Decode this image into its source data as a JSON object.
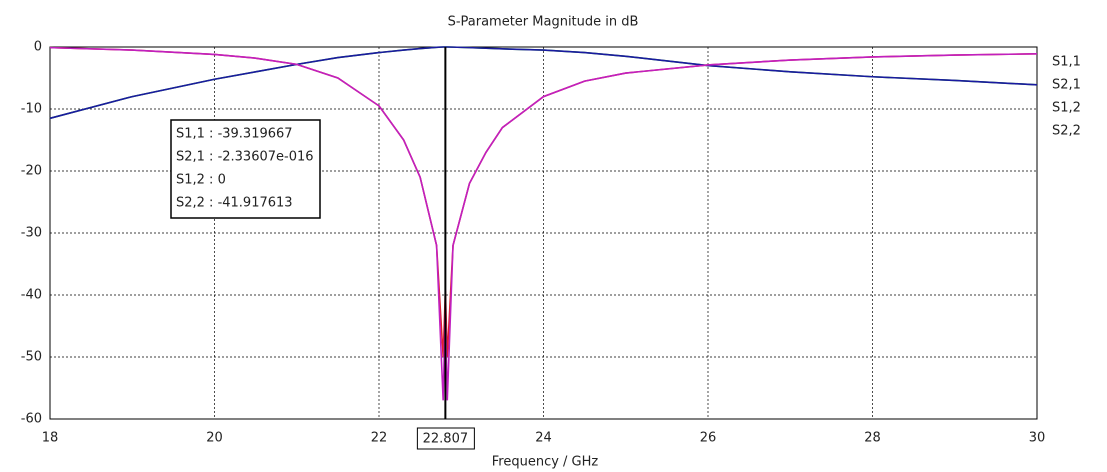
{
  "chart_data": {
    "type": "line",
    "title": "S-Parameter Magnitude in dB",
    "x_label": "Frequency / GHz",
    "x": [
      18,
      19,
      20,
      20.5,
      21,
      21.5,
      22,
      22.3,
      22.5,
      22.7,
      22.78,
      22.807,
      22.83,
      22.9,
      23.1,
      23.3,
      23.5,
      24,
      24.5,
      25,
      26,
      27,
      28,
      29,
      30
    ],
    "series": [
      {
        "name": "S1,1",
        "color": "#e0202a",
        "values": [
          -0.1,
          -0.5,
          -1.2,
          -1.8,
          -2.8,
          -5,
          -9.5,
          -15,
          -21,
          -32,
          -50,
          -39.3,
          -50,
          -32,
          -22,
          -17,
          -13,
          -8,
          -5.5,
          -4.2,
          -2.9,
          -2.1,
          -1.6,
          -1.3,
          -1.1
        ]
      },
      {
        "name": "S2,1",
        "color": "#2aa02a",
        "values": [
          -11.5,
          -8,
          -5.2,
          -4,
          -2.8,
          -1.7,
          -0.9,
          -0.5,
          -0.25,
          -0.05,
          0,
          0,
          0,
          -0.02,
          -0.1,
          -0.2,
          -0.3,
          -0.5,
          -0.9,
          -1.5,
          -3,
          -4,
          -4.8,
          -5.4,
          -6.1
        ]
      },
      {
        "name": "S1,2",
        "color": "#1a1aa0",
        "values": [
          -11.5,
          -8,
          -5.2,
          -4,
          -2.8,
          -1.7,
          -0.9,
          -0.5,
          -0.25,
          -0.05,
          0,
          0,
          0,
          -0.02,
          -0.1,
          -0.2,
          -0.3,
          -0.5,
          -0.9,
          -1.5,
          -3,
          -4,
          -4.8,
          -5.4,
          -6.1
        ]
      },
      {
        "name": "S2,2",
        "color": "#c020c0",
        "values": [
          -0.1,
          -0.5,
          -1.2,
          -1.8,
          -2.8,
          -5,
          -9.5,
          -15,
          -21,
          -32,
          -57,
          -41.9,
          -57,
          -32,
          -22,
          -17,
          -13,
          -8,
          -5.5,
          -4.2,
          -2.9,
          -2.1,
          -1.6,
          -1.3,
          -1.1
        ]
      }
    ],
    "xlim": [
      18,
      30
    ],
    "ylim": [
      -60,
      0
    ],
    "xticks": [
      18,
      20,
      22,
      24,
      26,
      28,
      30
    ],
    "yticks": [
      0,
      -10,
      -20,
      -30,
      -40,
      -50,
      -60
    ],
    "grid": true,
    "legend": "right",
    "marker": {
      "x": 22.807,
      "readouts": [
        "S1,1 : -39.319667",
        "S2,1 : -2.33607e-016",
        "S1,2 : 0",
        "S2,2 : -41.917613"
      ]
    }
  }
}
